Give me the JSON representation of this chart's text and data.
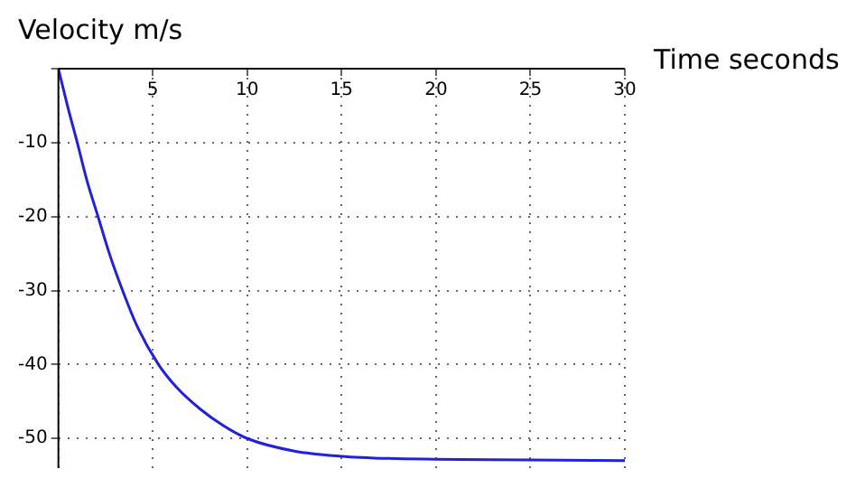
{
  "chart_data": {
    "type": "line",
    "xlabel": "Time seconds",
    "ylabel": "Velocity m/s",
    "series": [
      {
        "color": "#2020dd",
        "x": [
          0,
          0.5,
          1,
          1.5,
          2.1,
          2.7,
          3.4,
          4.2,
          5.3,
          6.3,
          7.5,
          8.7,
          10,
          12.5,
          15,
          17.5,
          20,
          25,
          30
        ],
        "values": [
          0,
          -5.2,
          -10,
          -15,
          -20,
          -25,
          -30,
          -35,
          -40,
          -43.2,
          -46,
          -48.2,
          -50,
          -51.7,
          -52.4,
          -52.7,
          -52.8,
          -52.9,
          -53
        ]
      }
    ],
    "xlim": [
      0,
      30
    ],
    "ylim": [
      -54,
      0
    ],
    "xticks": [
      {
        "value": 0,
        "label": null
      },
      5,
      10,
      15,
      20,
      25,
      30
    ],
    "yticks": [
      {
        "value": 0,
        "label": null
      },
      -10,
      -20,
      -30,
      -40,
      -50
    ],
    "grid": true,
    "line_style": "solid",
    "marker": "none",
    "legend": false
  }
}
